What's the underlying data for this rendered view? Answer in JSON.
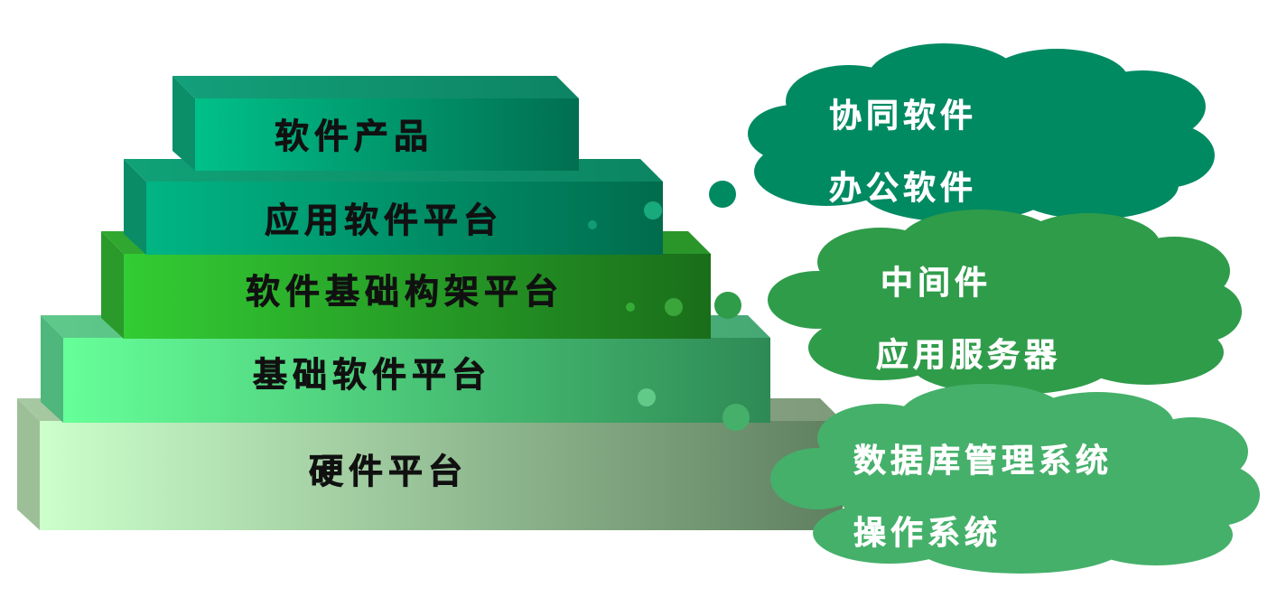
{
  "layers": [
    {
      "label": "软件产品",
      "color": "#0a8a66"
    },
    {
      "label": "应用软件平台",
      "color": "#0b8f6b"
    },
    {
      "label": "软件基础构架平台",
      "color": "#2ea82e"
    },
    {
      "label": "基础软件平台",
      "color": "#45b86a"
    },
    {
      "label": "硬件平台",
      "color": "#b8d8b0"
    }
  ],
  "clouds": [
    {
      "items": [
        "协同软件",
        "办公软件"
      ],
      "color": "#008a62"
    },
    {
      "items": [
        "中间件",
        "应用服务器"
      ],
      "color": "#2f9c4a"
    },
    {
      "items": [
        "数据库管理系统",
        "操作系统"
      ],
      "color": "#45b06a"
    }
  ]
}
